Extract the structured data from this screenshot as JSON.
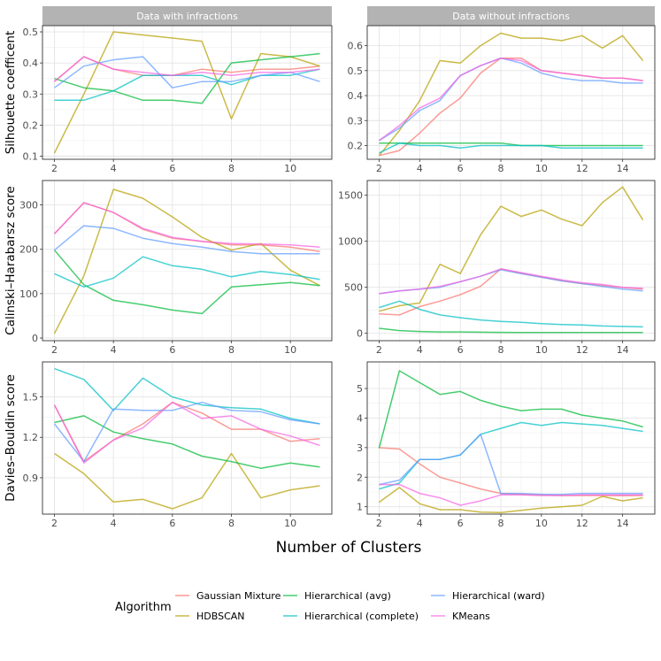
{
  "chart_data": {
    "type": "line",
    "xlabel": "Number of Clusters",
    "legend": {
      "title": "Algorithm",
      "placement": "bottom",
      "entries": [
        "Gaussian Mixture",
        "HDBSCAN",
        "Hierarchical (avg)",
        "Hierarchical (complete)",
        "Hierarchical (ward)",
        "KMeans"
      ]
    },
    "colors": {
      "Gaussian Mixture": "#F8766D",
      "HDBSCAN": "#B79F00",
      "Hierarchical (avg)": "#00BA38",
      "Hierarchical (complete)": "#00BFC4",
      "Hierarchical (ward)": "#619CFF",
      "KMeans": "#F564E3"
    },
    "columns": [
      "Data with infractions",
      "Data without infractions"
    ],
    "rows": [
      "Silhouette coefficent",
      "Calinski–Harabarsz score",
      "Davies–Bouldin score"
    ],
    "panels": [
      {
        "title": "Data with infractions",
        "ylabel": "Silhouette coefficent",
        "xlim": [
          2,
          11
        ],
        "ylim": [
          0.09,
          0.52
        ],
        "xticks": [
          2,
          4,
          6,
          8,
          10
        ],
        "xtick_labels": [
          "2",
          "4",
          "6",
          "8",
          "10"
        ],
        "yticks": [
          0.1,
          0.2,
          0.3,
          0.4,
          0.5
        ],
        "ytick_labels": [
          "0.1",
          "0.2",
          "0.3",
          "0.4",
          "0.5"
        ],
        "x": [
          2,
          3,
          4,
          5,
          6,
          7,
          8,
          9,
          10,
          11
        ],
        "series": [
          {
            "name": "Gaussian Mixture",
            "values": [
              0.34,
              0.42,
              0.38,
              0.36,
              0.36,
              0.38,
              0.37,
              0.38,
              0.38,
              0.39
            ]
          },
          {
            "name": "HDBSCAN",
            "values": [
              0.11,
              0.3,
              0.5,
              0.49,
              0.48,
              0.47,
              0.22,
              0.43,
              0.42,
              0.39
            ]
          },
          {
            "name": "Hierarchical (avg)",
            "values": [
              0.35,
              0.32,
              0.31,
              0.28,
              0.28,
              0.27,
              0.4,
              0.41,
              0.42,
              0.43
            ]
          },
          {
            "name": "Hierarchical (complete)",
            "values": [
              0.28,
              0.28,
              0.31,
              0.36,
              0.36,
              0.36,
              0.33,
              0.36,
              0.36,
              0.38
            ]
          },
          {
            "name": "Hierarchical (ward)",
            "values": [
              0.32,
              0.39,
              0.41,
              0.42,
              0.32,
              0.34,
              0.34,
              0.36,
              0.37,
              0.34
            ]
          },
          {
            "name": "KMeans",
            "values": [
              0.34,
              0.42,
              0.38,
              0.37,
              0.36,
              0.37,
              0.36,
              0.37,
              0.37,
              0.38
            ]
          }
        ]
      },
      {
        "title": "Data without infractions",
        "ylabel": "",
        "xlim": [
          2,
          15
        ],
        "ylim": [
          0.145,
          0.68
        ],
        "xticks": [
          2,
          4,
          6,
          8,
          10,
          12,
          14
        ],
        "xtick_labels": [
          "2",
          "4",
          "6",
          "8",
          "10",
          "12",
          "14"
        ],
        "yticks": [
          0.2,
          0.3,
          0.4,
          0.5,
          0.6
        ],
        "ytick_labels": [
          "0.2",
          "0.3",
          "0.4",
          "0.5",
          "0.6"
        ],
        "x": [
          2,
          3,
          4,
          5,
          6,
          7,
          8,
          9,
          10,
          11,
          12,
          13,
          14,
          15
        ],
        "series": [
          {
            "name": "Gaussian Mixture",
            "values": [
              0.16,
              0.18,
              0.25,
              0.33,
              0.39,
              0.49,
              0.55,
              0.55,
              0.5,
              0.49,
              0.48,
              0.47,
              0.47,
              0.46
            ]
          },
          {
            "name": "HDBSCAN",
            "values": [
              0.16,
              0.26,
              0.38,
              0.54,
              0.53,
              0.6,
              0.65,
              0.63,
              0.63,
              0.62,
              0.64,
              0.59,
              0.64,
              0.54
            ]
          },
          {
            "name": "Hierarchical (avg)",
            "values": [
              0.21,
              0.21,
              0.21,
              0.21,
              0.21,
              0.21,
              0.21,
              0.2,
              0.2,
              0.2,
              0.2,
              0.2,
              0.2,
              0.2
            ]
          },
          {
            "name": "Hierarchical (complete)",
            "values": [
              0.17,
              0.21,
              0.2,
              0.2,
              0.19,
              0.2,
              0.2,
              0.2,
              0.2,
              0.19,
              0.19,
              0.19,
              0.19,
              0.19
            ]
          },
          {
            "name": "Hierarchical (ward)",
            "values": [
              0.22,
              0.27,
              0.34,
              0.38,
              0.48,
              0.52,
              0.55,
              0.53,
              0.49,
              0.47,
              0.46,
              0.46,
              0.45,
              0.45
            ]
          },
          {
            "name": "KMeans",
            "values": [
              0.22,
              0.28,
              0.35,
              0.39,
              0.48,
              0.52,
              0.55,
              0.54,
              0.5,
              0.49,
              0.48,
              0.47,
              0.47,
              0.46
            ]
          }
        ]
      },
      {
        "title": "",
        "ylabel": "Calinski–Harabarsz score",
        "xlim": [
          2,
          11
        ],
        "ylim": [
          -6,
          355
        ],
        "xticks": [
          2,
          4,
          6,
          8,
          10
        ],
        "xtick_labels": [
          "2",
          "4",
          "6",
          "8",
          "10"
        ],
        "yticks": [
          0,
          100,
          200,
          300
        ],
        "ytick_labels": [
          "0",
          "100",
          "200",
          "300"
        ],
        "x": [
          2,
          3,
          4,
          5,
          6,
          7,
          8,
          9,
          10,
          11
        ],
        "series": [
          {
            "name": "Gaussian Mixture",
            "values": [
              235,
              305,
              283,
              245,
              225,
              218,
              210,
              210,
              205,
              195
            ]
          },
          {
            "name": "HDBSCAN",
            "values": [
              10,
              140,
              335,
              315,
              273,
              227,
              198,
              213,
              153,
              118
            ]
          },
          {
            "name": "Hierarchical (avg)",
            "values": [
              198,
              120,
              85,
              75,
              63,
              55,
              115,
              120,
              125,
              118
            ]
          },
          {
            "name": "Hierarchical (complete)",
            "values": [
              145,
              115,
              135,
              183,
              163,
              155,
              138,
              150,
              143,
              132
            ]
          },
          {
            "name": "Hierarchical (ward)",
            "values": [
              198,
              253,
              247,
              225,
              213,
              205,
              195,
              190,
              190,
              190
            ]
          },
          {
            "name": "KMeans",
            "values": [
              235,
              305,
              283,
              247,
              227,
              218,
              213,
              212,
              210,
              205
            ]
          }
        ]
      },
      {
        "title": "",
        "ylabel": "",
        "xlim": [
          2,
          15
        ],
        "ylim": [
          -80,
          1660
        ],
        "xticks": [
          2,
          4,
          6,
          8,
          10,
          12,
          14
        ],
        "xtick_labels": [
          "2",
          "4",
          "6",
          "8",
          "10",
          "12",
          "14"
        ],
        "yticks": [
          0,
          500,
          1000,
          1500
        ],
        "ytick_labels": [
          "0",
          "500",
          "1000",
          "1500"
        ],
        "x": [
          2,
          3,
          4,
          5,
          6,
          7,
          8,
          9,
          10,
          11,
          12,
          13,
          14,
          15
        ],
        "series": [
          {
            "name": "Gaussian Mixture",
            "values": [
              210,
              200,
              290,
              350,
              420,
              510,
              700,
              650,
              610,
              570,
              540,
              520,
              500,
              480
            ]
          },
          {
            "name": "HDBSCAN",
            "values": [
              240,
              300,
              330,
              750,
              650,
              1070,
              1380,
              1270,
              1340,
              1240,
              1170,
              1420,
              1590,
              1230
            ]
          },
          {
            "name": "Hierarchical (avg)",
            "values": [
              55,
              30,
              20,
              15,
              15,
              12,
              10,
              8,
              8,
              8,
              8,
              8,
              8,
              8
            ]
          },
          {
            "name": "Hierarchical (complete)",
            "values": [
              280,
              350,
              260,
              200,
              170,
              145,
              130,
              120,
              105,
              95,
              90,
              80,
              75,
              70
            ]
          },
          {
            "name": "Hierarchical (ward)",
            "values": [
              430,
              460,
              480,
              500,
              560,
              620,
              690,
              650,
              610,
              570,
              540,
              510,
              480,
              460
            ]
          },
          {
            "name": "KMeans",
            "values": [
              430,
              460,
              480,
              510,
              560,
              620,
              700,
              660,
              620,
              580,
              550,
              530,
              500,
              490
            ]
          }
        ]
      },
      {
        "title": "",
        "ylabel": "Davies–Bouldin score",
        "xlim": [
          2,
          11
        ],
        "ylim": [
          0.63,
          1.76
        ],
        "xticks": [
          2,
          4,
          6,
          8,
          10
        ],
        "xtick_labels": [
          "2",
          "4",
          "6",
          "8",
          "10"
        ],
        "yticks": [
          0.9,
          1.2,
          1.5
        ],
        "ytick_labels": [
          "0.9",
          "1.2",
          "1.5"
        ],
        "x": [
          2,
          3,
          4,
          5,
          6,
          7,
          8,
          9,
          10,
          11
        ],
        "series": [
          {
            "name": "Gaussian Mixture",
            "values": [
              1.44,
              1.02,
              1.18,
              1.3,
              1.46,
              1.38,
              1.26,
              1.26,
              1.17,
              1.19
            ]
          },
          {
            "name": "HDBSCAN",
            "values": [
              1.08,
              0.93,
              0.72,
              0.74,
              0.67,
              0.75,
              1.08,
              0.75,
              0.81,
              0.84
            ]
          },
          {
            "name": "Hierarchical (avg)",
            "values": [
              1.31,
              1.36,
              1.24,
              1.19,
              1.15,
              1.06,
              1.02,
              0.97,
              1.01,
              0.98
            ]
          },
          {
            "name": "Hierarchical (complete)",
            "values": [
              1.71,
              1.63,
              1.4,
              1.64,
              1.5,
              1.44,
              1.42,
              1.41,
              1.34,
              1.3
            ]
          },
          {
            "name": "Hierarchical (ward)",
            "values": [
              1.3,
              1.02,
              1.41,
              1.4,
              1.4,
              1.46,
              1.4,
              1.39,
              1.33,
              1.3
            ]
          },
          {
            "name": "KMeans",
            "values": [
              1.44,
              1.01,
              1.18,
              1.27,
              1.46,
              1.34,
              1.36,
              1.26,
              1.21,
              1.14
            ]
          }
        ]
      },
      {
        "title": "",
        "ylabel": "",
        "xlim": [
          2,
          15
        ],
        "ylim": [
          0.75,
          5.9
        ],
        "xticks": [
          2,
          4,
          6,
          8,
          10,
          12,
          14
        ],
        "xtick_labels": [
          "2",
          "4",
          "6",
          "8",
          "10",
          "12",
          "14"
        ],
        "yticks": [
          1,
          2,
          3,
          4,
          5
        ],
        "ytick_labels": [
          "1",
          "2",
          "3",
          "4",
          "5"
        ],
        "x": [
          2,
          3,
          4,
          5,
          6,
          7,
          8,
          9,
          10,
          11,
          12,
          13,
          14,
          15
        ],
        "series": [
          {
            "name": "Gaussian Mixture",
            "values": [
              3.0,
              2.95,
              2.45,
              2.0,
              1.8,
              1.6,
              1.45,
              1.42,
              1.4,
              1.38,
              1.38,
              1.38,
              1.37,
              1.38
            ]
          },
          {
            "name": "HDBSCAN",
            "values": [
              1.15,
              1.65,
              1.1,
              0.9,
              0.9,
              0.82,
              0.8,
              0.88,
              0.95,
              1.0,
              1.05,
              1.35,
              1.2,
              1.3
            ]
          },
          {
            "name": "Hierarchical (avg)",
            "values": [
              2.98,
              5.6,
              5.2,
              4.8,
              4.9,
              4.6,
              4.4,
              4.25,
              4.3,
              4.3,
              4.1,
              4.0,
              3.9,
              3.7
            ]
          },
          {
            "name": "Hierarchical (complete)",
            "values": [
              1.6,
              1.8,
              2.6,
              2.6,
              2.75,
              3.45,
              3.65,
              3.85,
              3.75,
              3.85,
              3.8,
              3.75,
              3.65,
              3.55
            ]
          },
          {
            "name": "Hierarchical (ward)",
            "values": [
              1.75,
              1.9,
              2.6,
              2.6,
              2.75,
              3.45,
              1.45,
              1.45,
              1.42,
              1.42,
              1.45,
              1.45,
              1.45,
              1.45
            ]
          },
          {
            "name": "KMeans",
            "values": [
              1.75,
              1.75,
              1.45,
              1.3,
              1.05,
              1.2,
              1.4,
              1.4,
              1.38,
              1.38,
              1.4,
              1.4,
              1.4,
              1.4
            ]
          }
        ]
      }
    ]
  }
}
